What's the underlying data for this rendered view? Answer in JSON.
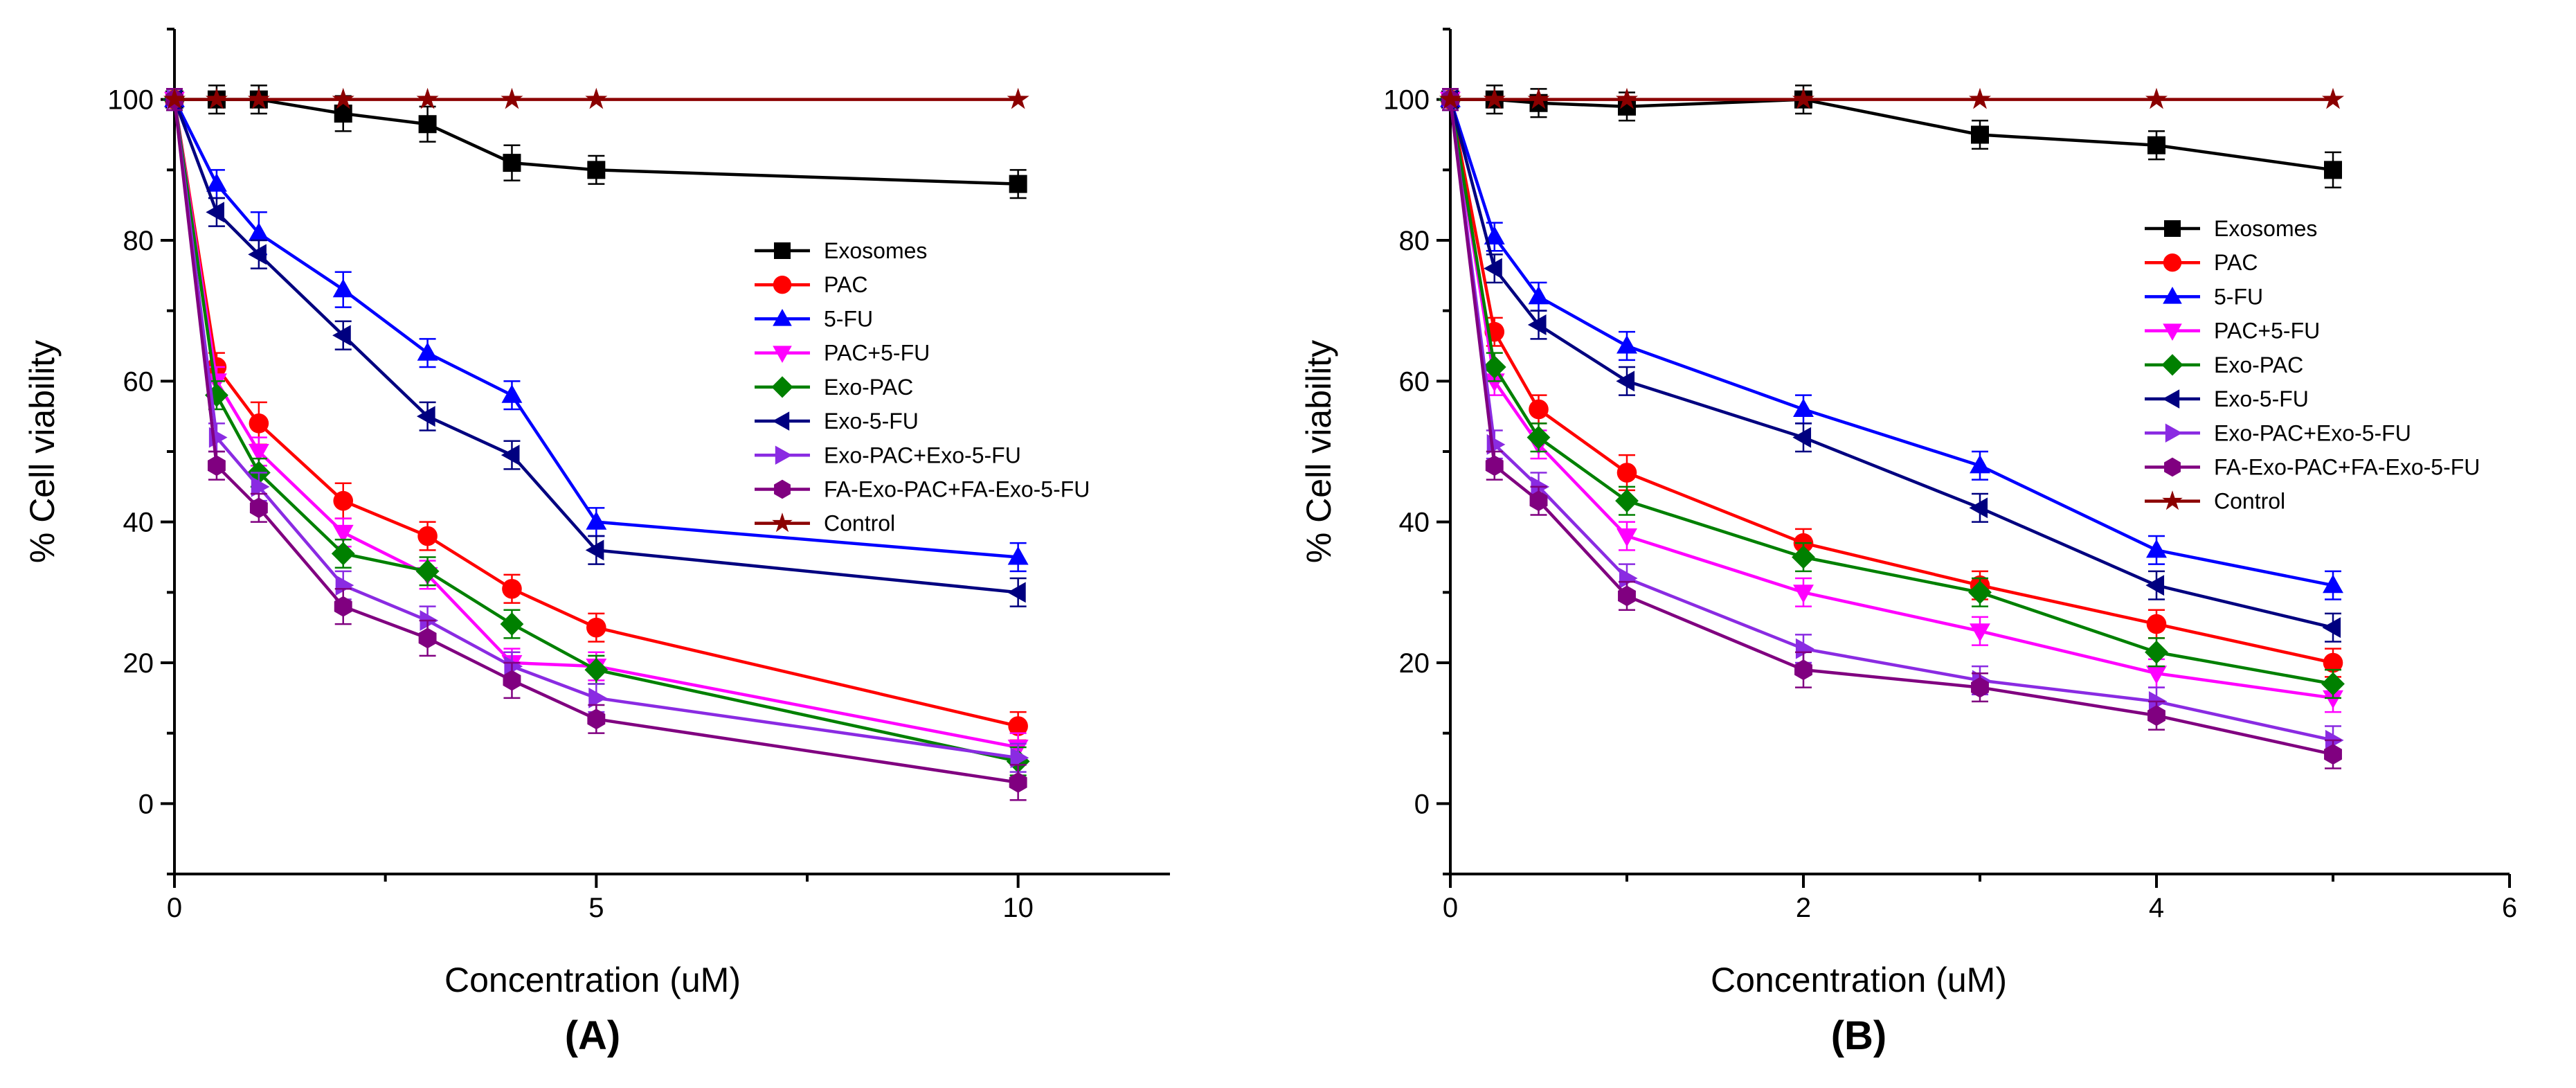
{
  "chart_data": [
    {
      "type": "line",
      "panel_label": "(A)",
      "xlabel": "Concentration (uM)",
      "ylabel": "% Cell viability",
      "xlim": [
        0,
        11.8
      ],
      "ylim": [
        -10,
        110
      ],
      "xticks": [
        0,
        5,
        10
      ],
      "xtick_labels": [
        "0",
        "5",
        "10"
      ],
      "yticks": [
        0,
        20,
        40,
        60,
        80,
        100
      ],
      "ytick_labels": [
        "0",
        "20",
        "40",
        "60",
        "80",
        "100"
      ],
      "legend_position": "center-right",
      "x": [
        0,
        0.5,
        1,
        2,
        3,
        4,
        5,
        10
      ],
      "series": [
        {
          "name": "Exosomes",
          "color": "#000000",
          "marker": "square",
          "values": [
            100,
            100,
            100,
            98,
            96.5,
            91,
            90,
            88
          ],
          "errors": [
            1.5,
            2,
            2,
            2.5,
            2.5,
            2.5,
            2,
            2
          ]
        },
        {
          "name": "PAC",
          "color": "#ff0000",
          "marker": "circle",
          "values": [
            100,
            62,
            54,
            43,
            38,
            30.5,
            25,
            11
          ],
          "errors": [
            1.5,
            2,
            3,
            2.5,
            2,
            2,
            2,
            2
          ]
        },
        {
          "name": "5-FU",
          "color": "#0000ff",
          "marker": "triangle-up",
          "values": [
            100,
            88,
            81,
            73,
            64,
            58,
            40,
            35
          ],
          "errors": [
            1.5,
            2,
            3,
            2.5,
            2,
            2,
            2,
            2
          ]
        },
        {
          "name": "PAC+5-FU",
          "color": "#ff00ff",
          "marker": "triangle-down",
          "values": [
            100,
            60,
            50,
            38.5,
            32.5,
            20,
            19.5,
            8
          ],
          "errors": [
            1.5,
            2,
            2,
            2,
            2,
            2,
            2,
            2
          ]
        },
        {
          "name": "Exo-PAC",
          "color": "#008000",
          "marker": "diamond",
          "values": [
            100,
            58,
            47,
            35.5,
            33,
            25.5,
            19,
            6
          ],
          "errors": [
            1.5,
            2,
            2,
            2,
            2,
            2,
            2,
            2
          ]
        },
        {
          "name": "Exo-5-FU",
          "color": "#000080",
          "marker": "triangle-left",
          "values": [
            100,
            84,
            78,
            66.5,
            55,
            49.5,
            36,
            30
          ],
          "errors": [
            1.5,
            2,
            2,
            2,
            2,
            2,
            2,
            2
          ]
        },
        {
          "name": "Exo-PAC+Exo-5-FU",
          "color": "#8a2be2",
          "marker": "triangle-right",
          "values": [
            100,
            52,
            45,
            31,
            26,
            19.5,
            15,
            6.5
          ],
          "errors": [
            1.5,
            2,
            2,
            2,
            2,
            2,
            2,
            2
          ]
        },
        {
          "name": "FA-Exo-PAC+FA-Exo-5-FU",
          "color": "#800080",
          "marker": "hexagon",
          "values": [
            100,
            48,
            42,
            28,
            23.5,
            17.5,
            12,
            3
          ],
          "errors": [
            1.5,
            2,
            2,
            2.5,
            2.5,
            2.5,
            2,
            2.5
          ]
        },
        {
          "name": "Control",
          "color": "#8b0000",
          "marker": "star",
          "values": [
            100,
            100,
            100,
            100,
            100,
            100,
            100,
            100
          ],
          "errors": [
            0,
            0,
            0,
            0,
            0,
            0,
            0,
            0
          ]
        }
      ]
    },
    {
      "type": "line",
      "panel_label": "(B)",
      "xlabel": "Concentration (uM)",
      "ylabel": "% Cell viability",
      "xlim": [
        0,
        6
      ],
      "ylim": [
        -10,
        110
      ],
      "xticks": [
        0,
        2,
        4,
        6
      ],
      "xtick_labels": [
        "0",
        "2",
        "4",
        "6"
      ],
      "yticks": [
        0,
        20,
        40,
        60,
        80,
        100
      ],
      "ytick_labels": [
        "0",
        "20",
        "40",
        "60",
        "80",
        "100"
      ],
      "legend_position": "upper-right",
      "x": [
        0,
        0.25,
        0.5,
        1,
        2,
        3,
        4,
        5
      ],
      "series": [
        {
          "name": "Exosomes",
          "color": "#000000",
          "marker": "square",
          "values": [
            100,
            100,
            99.5,
            99,
            100,
            95,
            93.5,
            90
          ],
          "errors": [
            1.5,
            2,
            2,
            2,
            2,
            2,
            2,
            2.5
          ]
        },
        {
          "name": "PAC",
          "color": "#ff0000",
          "marker": "circle",
          "values": [
            100,
            67,
            56,
            47,
            37,
            31,
            25.5,
            20
          ],
          "errors": [
            1.5,
            2,
            2,
            2.5,
            2,
            2,
            2,
            2
          ]
        },
        {
          "name": "5-FU",
          "color": "#0000ff",
          "marker": "triangle-up",
          "values": [
            100,
            80.5,
            72,
            65,
            56,
            48,
            36,
            31
          ],
          "errors": [
            1.5,
            2,
            2,
            2,
            2,
            2,
            2,
            2
          ]
        },
        {
          "name": "PAC+5-FU",
          "color": "#ff00ff",
          "marker": "triangle-down",
          "values": [
            100,
            60,
            51,
            38,
            30,
            24.5,
            18.5,
            15
          ],
          "errors": [
            1.5,
            2,
            2,
            2,
            2,
            2,
            2,
            2
          ]
        },
        {
          "name": "Exo-PAC",
          "color": "#008000",
          "marker": "diamond",
          "values": [
            100,
            62,
            52,
            43,
            35,
            30,
            21.5,
            17
          ],
          "errors": [
            1.5,
            2,
            2,
            2,
            2,
            2,
            2,
            2
          ]
        },
        {
          "name": "Exo-5-FU",
          "color": "#000080",
          "marker": "triangle-left",
          "values": [
            100,
            76,
            68,
            60,
            52,
            42,
            31,
            25
          ],
          "errors": [
            1.5,
            2,
            2,
            2,
            2,
            2,
            2,
            2
          ]
        },
        {
          "name": "Exo-PAC+Exo-5-FU",
          "color": "#8a2be2",
          "marker": "triangle-right",
          "values": [
            100,
            51,
            45,
            32,
            22,
            17.5,
            14.5,
            9
          ],
          "errors": [
            1.5,
            2,
            2,
            2,
            2,
            2,
            2,
            2
          ]
        },
        {
          "name": "FA-Exo-PAC+FA-Exo-5-FU",
          "color": "#800080",
          "marker": "hexagon",
          "values": [
            100,
            48,
            43,
            29.5,
            19,
            16.5,
            12.5,
            7
          ],
          "errors": [
            1.5,
            2,
            2,
            2,
            2.5,
            2,
            2,
            2
          ]
        },
        {
          "name": "Control",
          "color": "#8b0000",
          "marker": "star",
          "values": [
            100,
            100,
            100,
            100,
            100,
            100,
            100,
            100
          ],
          "errors": [
            0,
            0,
            0,
            0,
            0,
            0,
            0,
            0
          ]
        }
      ]
    }
  ]
}
